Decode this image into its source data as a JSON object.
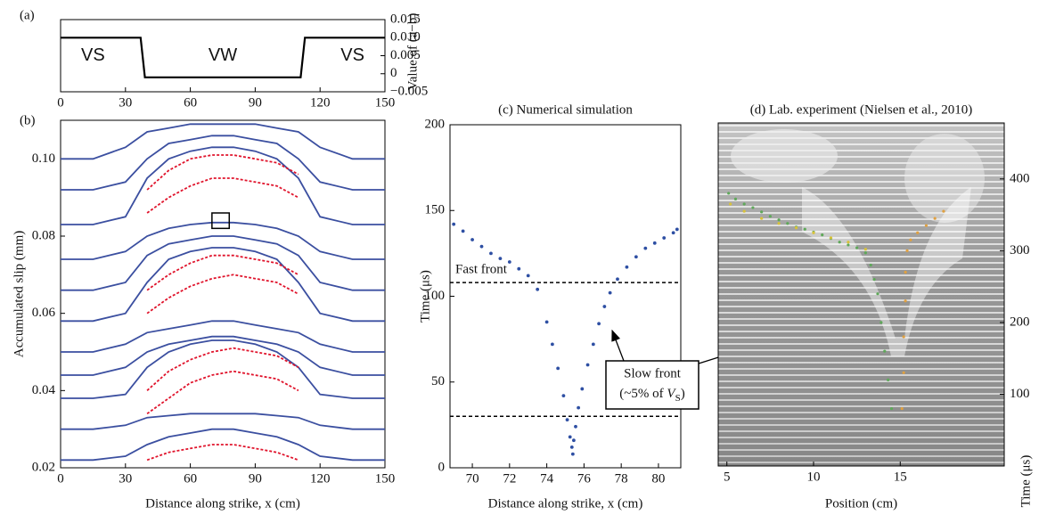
{
  "chart_data": [
    {
      "type": "line",
      "panel_label": "(a)",
      "x": [
        0,
        37,
        39,
        111,
        113,
        150
      ],
      "series": [
        {
          "color": "#000000",
          "axis": "y2",
          "values": [
            0.01,
            0.01,
            -0.001,
            -0.001,
            0.01,
            0.01
          ]
        }
      ],
      "xlim": [
        0,
        150
      ],
      "xticks": [
        0,
        30,
        60,
        90,
        120,
        150
      ],
      "y2lim": [
        -0.005,
        0.015
      ],
      "y2ticks": [
        {
          "value": -0.005,
          "label": "−0.005"
        },
        0,
        0.005,
        {
          "value": 0.01,
          "label": "0.010"
        },
        0.015
      ],
      "y2_label": "Value of (a−b)",
      "annotations": [
        "VS",
        "VW",
        "VS"
      ]
    },
    {
      "type": "line",
      "panel_label": "(b)",
      "x": [
        0,
        15,
        30,
        40,
        50,
        60,
        70,
        80,
        90,
        100,
        110,
        120,
        135,
        150
      ],
      "series": [
        {
          "color": "#3b4fa0",
          "values": [
            0.022,
            0.022,
            0.023,
            0.026,
            0.028,
            0.029,
            0.03,
            0.03,
            0.029,
            0.028,
            0.026,
            0.023,
            0.022,
            0.022
          ]
        },
        {
          "color": "#3b4fa0",
          "values": [
            0.03,
            0.03,
            0.031,
            0.033,
            0.0335,
            0.034,
            0.034,
            0.034,
            0.034,
            0.0335,
            0.033,
            0.031,
            0.03,
            0.03
          ]
        },
        {
          "color": "#3b4fa0",
          "values": [
            0.038,
            0.038,
            0.039,
            0.046,
            0.05,
            0.052,
            0.053,
            0.053,
            0.052,
            0.05,
            0.046,
            0.039,
            0.038,
            0.038
          ]
        },
        {
          "color": "#3b4fa0",
          "values": [
            0.044,
            0.044,
            0.046,
            0.05,
            0.052,
            0.053,
            0.054,
            0.054,
            0.053,
            0.052,
            0.05,
            0.046,
            0.044,
            0.044
          ]
        },
        {
          "color": "#3b4fa0",
          "values": [
            0.05,
            0.05,
            0.052,
            0.055,
            0.056,
            0.057,
            0.058,
            0.058,
            0.057,
            0.056,
            0.055,
            0.052,
            0.05,
            0.05
          ]
        },
        {
          "color": "#3b4fa0",
          "values": [
            0.058,
            0.058,
            0.06,
            0.068,
            0.074,
            0.076,
            0.077,
            0.077,
            0.076,
            0.074,
            0.068,
            0.06,
            0.058,
            0.058
          ]
        },
        {
          "color": "#3b4fa0",
          "values": [
            0.066,
            0.066,
            0.068,
            0.075,
            0.078,
            0.079,
            0.08,
            0.08,
            0.079,
            0.078,
            0.075,
            0.068,
            0.066,
            0.066
          ]
        },
        {
          "color": "#3b4fa0",
          "values": [
            0.074,
            0.074,
            0.076,
            0.08,
            0.082,
            0.083,
            0.0835,
            0.0835,
            0.083,
            0.082,
            0.08,
            0.076,
            0.074,
            0.074
          ]
        },
        {
          "color": "#3b4fa0",
          "values": [
            0.083,
            0.083,
            0.085,
            0.095,
            0.1,
            0.102,
            0.103,
            0.103,
            0.102,
            0.1,
            0.095,
            0.085,
            0.083,
            0.083
          ]
        },
        {
          "color": "#3b4fa0",
          "values": [
            0.092,
            0.092,
            0.094,
            0.1,
            0.104,
            0.105,
            0.106,
            0.106,
            0.105,
            0.104,
            0.1,
            0.094,
            0.092,
            0.092
          ]
        },
        {
          "color": "#3b4fa0",
          "values": [
            0.1,
            0.1,
            0.103,
            0.107,
            0.108,
            0.109,
            0.109,
            0.109,
            0.109,
            0.108,
            0.107,
            0.103,
            0.1,
            0.1
          ]
        },
        {
          "color": "#e0142c",
          "dashed": true,
          "values": [
            null,
            null,
            null,
            0.022,
            0.024,
            0.025,
            0.026,
            0.026,
            0.025,
            0.024,
            0.022,
            null,
            null,
            null
          ]
        },
        {
          "color": "#e0142c",
          "dashed": true,
          "values": [
            null,
            null,
            null,
            0.034,
            0.038,
            0.042,
            0.044,
            0.045,
            0.044,
            0.043,
            0.04,
            null,
            null,
            null
          ]
        },
        {
          "color": "#e0142c",
          "dashed": true,
          "values": [
            null,
            null,
            null,
            0.04,
            0.045,
            0.048,
            0.05,
            0.051,
            0.05,
            0.049,
            0.046,
            null,
            null,
            null
          ]
        },
        {
          "color": "#e0142c",
          "dashed": true,
          "values": [
            null,
            null,
            null,
            0.06,
            0.064,
            0.067,
            0.069,
            0.07,
            0.069,
            0.068,
            0.065,
            null,
            null,
            null
          ]
        },
        {
          "color": "#e0142c",
          "dashed": true,
          "values": [
            null,
            null,
            null,
            0.066,
            0.07,
            0.073,
            0.075,
            0.075,
            0.074,
            0.073,
            0.07,
            null,
            null,
            null
          ]
        },
        {
          "color": "#e0142c",
          "dashed": true,
          "values": [
            null,
            null,
            null,
            0.086,
            0.09,
            0.093,
            0.095,
            0.095,
            0.094,
            0.093,
            0.09,
            null,
            null,
            null
          ]
        },
        {
          "color": "#e0142c",
          "dashed": true,
          "values": [
            null,
            null,
            null,
            0.092,
            0.097,
            0.1,
            0.101,
            0.101,
            0.1,
            0.099,
            0.096,
            null,
            null,
            null
          ]
        }
      ],
      "xlim": [
        0,
        150
      ],
      "xticks": [
        0,
        30,
        60,
        90,
        120,
        150
      ],
      "ylim": [
        0.02,
        0.11
      ],
      "yticks": [
        0.02,
        0.04,
        0.06,
        0.08,
        {
          "value": 0.1,
          "label": "0.10"
        }
      ],
      "xlabel": "Distance along strike, x (cm)",
      "ylabel": "Accumulated slip (mm)"
    },
    {
      "type": "scatter",
      "title": "(c) Numerical simulation",
      "x": [
        69,
        69.5,
        70,
        70.5,
        71,
        71.5,
        72,
        72.5,
        73,
        73.5,
        74,
        74.3,
        74.6,
        74.9,
        75.1,
        75.25,
        75.35,
        75.4,
        75.45,
        75.55,
        75.7,
        75.9,
        76.2,
        76.5,
        76.8,
        77.1,
        77.4,
        77.8,
        78.3,
        78.8,
        79.3,
        79.8,
        80.3,
        80.8,
        81
      ],
      "values": [
        142,
        138,
        133,
        129,
        125,
        122,
        120,
        116,
        112,
        104,
        85,
        72,
        58,
        42,
        28,
        18,
        12,
        8,
        16,
        24,
        35,
        46,
        60,
        72,
        84,
        94,
        102,
        110,
        117,
        123,
        128,
        131,
        134,
        137,
        139
      ],
      "color": "#2e4fa3",
      "xlim": [
        68.8,
        81.2
      ],
      "xticks": [
        70,
        72,
        74,
        76,
        78,
        80
      ],
      "ylim": [
        0,
        200
      ],
      "yticks": [
        0,
        50,
        100,
        150,
        200
      ],
      "xlabel": "Distance along strike, x  (cm)",
      "ylabel": "Time (μs)",
      "reference_lines": [
        {
          "value": 108,
          "label": "Fast front"
        },
        {
          "value": 30
        }
      ],
      "callout": [
        "Slow front",
        "(~5% of ",
        "V",
        "S",
        ")"
      ]
    },
    {
      "type": "scatter",
      "title": "(d) Lab. experiment (Nielsen et al., 2010)",
      "series": [
        {
          "color": "#5fa85a",
          "x": [
            5.1,
            5.5,
            6,
            6.5,
            7,
            7.5,
            8,
            8.5,
            9,
            9.5,
            10,
            10.5,
            11,
            11.5,
            12,
            12.5,
            13,
            13.3,
            13.5,
            13.7,
            13.9,
            14.1,
            14.3,
            14.5
          ],
          "values": [
            380,
            372,
            365,
            360,
            354,
            348,
            343,
            338,
            333,
            330,
            326,
            322,
            317,
            312,
            308,
            304,
            297,
            280,
            260,
            240,
            200,
            160,
            120,
            80
          ]
        },
        {
          "color": "#d8c23a",
          "x": [
            5.2,
            6,
            7,
            8,
            9,
            10,
            11,
            12,
            13
          ],
          "values": [
            365,
            355,
            345,
            338,
            332,
            325,
            318,
            312,
            302
          ]
        },
        {
          "color": "#e0a040",
          "x": [
            15.1,
            15.2,
            15.2,
            15.3,
            15.3,
            15.4,
            15.6,
            16,
            16.5,
            17,
            17.5
          ],
          "values": [
            80,
            130,
            180,
            230,
            270,
            300,
            315,
            325,
            335,
            345,
            355
          ]
        }
      ],
      "xlim": [
        4.5,
        21
      ],
      "xticks": [
        5,
        10,
        15
      ],
      "ylim": [
        0,
        478
      ],
      "yticks": [
        100,
        200,
        300,
        400
      ],
      "xlabel": "Position (cm)",
      "ylabel": "Time (μs)"
    }
  ]
}
